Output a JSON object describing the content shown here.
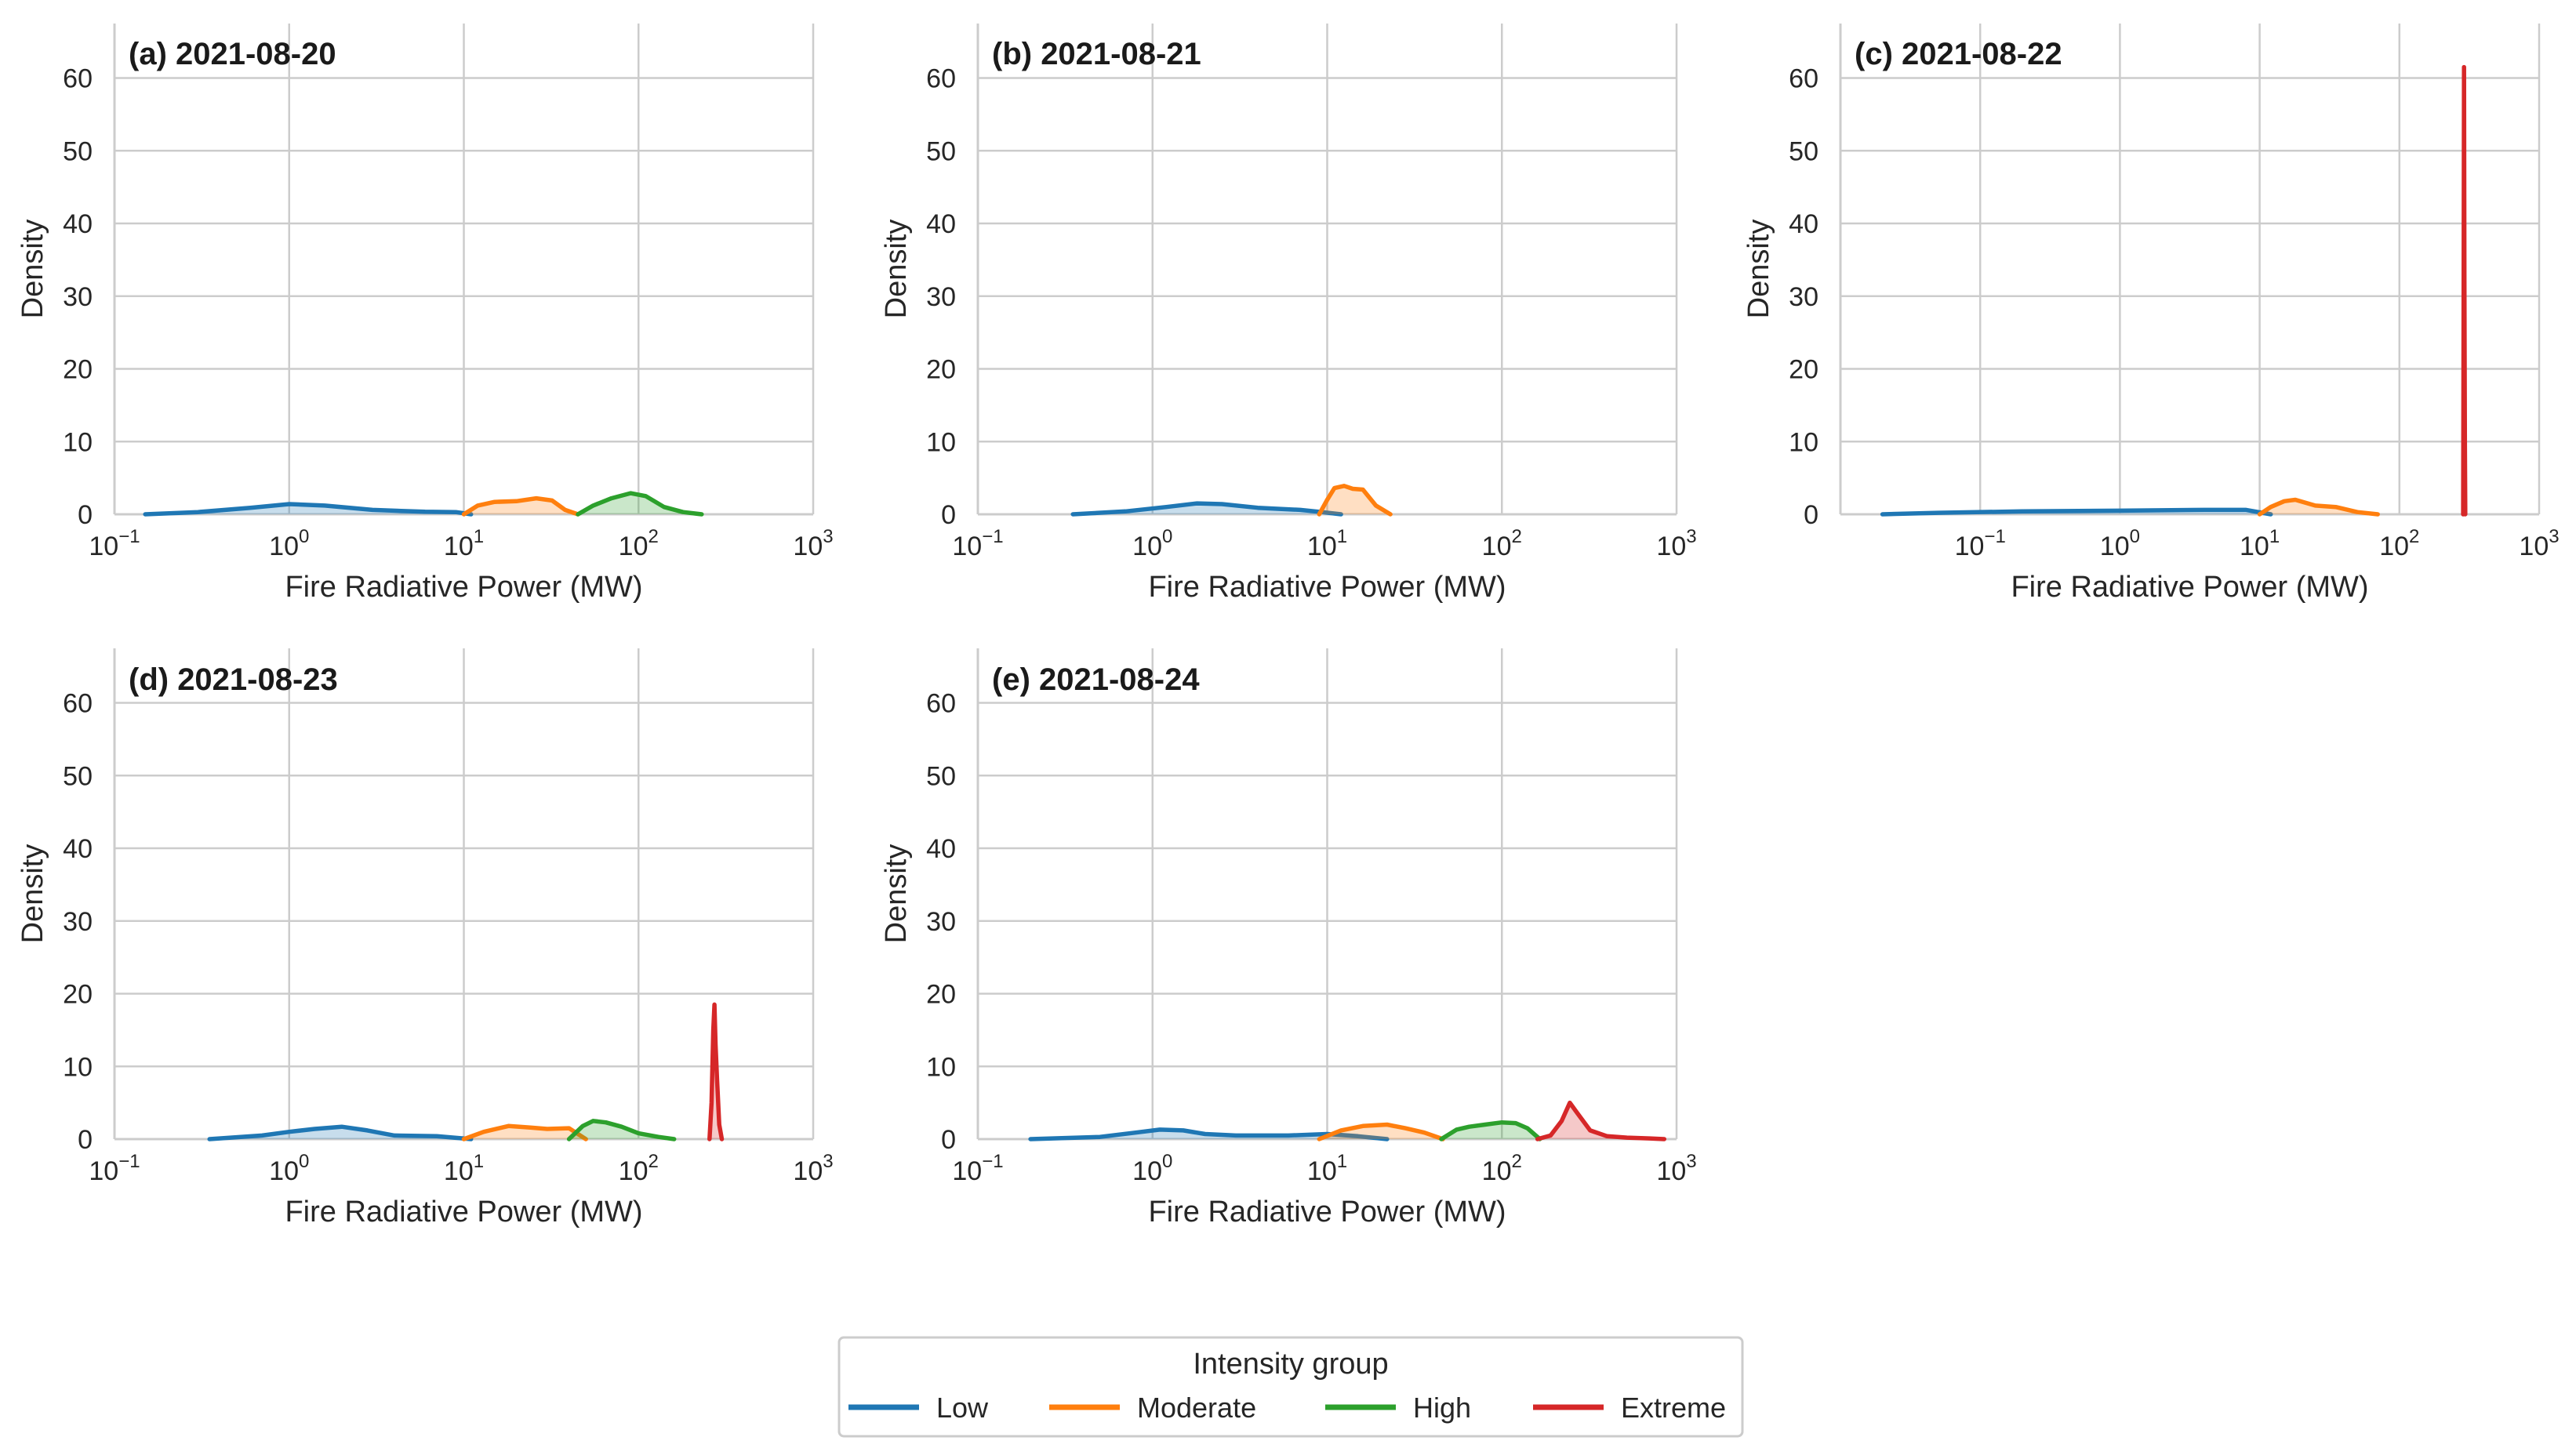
{
  "figure": {
    "legend": {
      "title": "Intensity group",
      "placement": "bottom-center"
    }
  },
  "chart_data": [
    {
      "type": "area",
      "title": "(a) 2021-08-20",
      "xlabel": "Fire Radiative Power (MW)",
      "ylabel": "Density",
      "xscale": "log",
      "xlim": [
        0.1,
        1000
      ],
      "ylim": [
        0,
        67.5
      ],
      "xticks": [
        0.1,
        1,
        10,
        100,
        1000
      ],
      "yticks": [
        0,
        10,
        20,
        30,
        40,
        50,
        60
      ],
      "grid": true,
      "series": [
        {
          "name": "Low",
          "color": "#1f77b4",
          "x": [
            0.15,
            0.3,
            0.6,
            1.0,
            1.6,
            3,
            6,
            9,
            11
          ],
          "y": [
            0,
            0.3,
            0.9,
            1.4,
            1.2,
            0.6,
            0.35,
            0.3,
            0
          ]
        },
        {
          "name": "Moderate",
          "color": "#ff7f0e",
          "x": [
            10,
            12,
            15,
            20,
            26,
            32,
            38,
            45
          ],
          "y": [
            0,
            1.2,
            1.7,
            1.8,
            2.2,
            1.9,
            0.6,
            0
          ]
        },
        {
          "name": "High",
          "color": "#2ca02c",
          "x": [
            45,
            55,
            70,
            90,
            110,
            140,
            180,
            230
          ],
          "y": [
            0,
            1.2,
            2.2,
            2.9,
            2.5,
            1.0,
            0.3,
            0
          ]
        }
      ]
    },
    {
      "type": "area",
      "title": "(b) 2021-08-21",
      "xlabel": "Fire Radiative Power (MW)",
      "ylabel": "Density",
      "xscale": "log",
      "xlim": [
        0.1,
        1000
      ],
      "ylim": [
        0,
        67.5
      ],
      "xticks": [
        0.1,
        1,
        10,
        100,
        1000
      ],
      "yticks": [
        0,
        10,
        20,
        30,
        40,
        50,
        60
      ],
      "grid": true,
      "series": [
        {
          "name": "Low",
          "color": "#1f77b4",
          "x": [
            0.35,
            0.7,
            1.2,
            1.8,
            2.5,
            4,
            7,
            9,
            12
          ],
          "y": [
            0,
            0.4,
            1.0,
            1.5,
            1.4,
            0.9,
            0.6,
            0.35,
            0
          ]
        },
        {
          "name": "Moderate",
          "color": "#ff7f0e",
          "x": [
            9,
            10,
            11,
            12.5,
            14,
            16,
            19,
            23
          ],
          "y": [
            0,
            2.0,
            3.6,
            3.9,
            3.5,
            3.4,
            1.2,
            0
          ]
        }
      ]
    },
    {
      "type": "area",
      "title": "(c) 2021-08-22",
      "xlabel": "Fire Radiative Power (MW)",
      "ylabel": "Density",
      "xscale": "log",
      "xlim": [
        0.01,
        1000
      ],
      "ylim": [
        0,
        67.5
      ],
      "xticks": [
        0.1,
        1,
        10,
        100,
        1000
      ],
      "yticks": [
        0,
        10,
        20,
        30,
        40,
        50,
        60
      ],
      "grid": true,
      "series": [
        {
          "name": "Low",
          "color": "#1f77b4",
          "x": [
            0.02,
            0.05,
            0.2,
            1,
            4,
            8,
            12
          ],
          "y": [
            0,
            0.2,
            0.4,
            0.5,
            0.6,
            0.6,
            0
          ]
        },
        {
          "name": "Moderate",
          "color": "#ff7f0e",
          "x": [
            10,
            12,
            15,
            18,
            25,
            35,
            50,
            70
          ],
          "y": [
            0,
            1.0,
            1.8,
            2.0,
            1.2,
            1.0,
            0.3,
            0
          ]
        },
        {
          "name": "Extreme",
          "color": "#d62728",
          "x": [
            286,
            288,
            290,
            292,
            294,
            296
          ],
          "y": [
            0,
            30,
            61.5,
            32,
            10,
            0
          ]
        }
      ]
    },
    {
      "type": "area",
      "title": "(d) 2021-08-23",
      "xlabel": "Fire Radiative Power (MW)",
      "ylabel": "Density",
      "xscale": "log",
      "xlim": [
        0.1,
        1000
      ],
      "ylim": [
        0,
        67.5
      ],
      "xticks": [
        0.1,
        1,
        10,
        100,
        1000
      ],
      "yticks": [
        0,
        10,
        20,
        30,
        40,
        50,
        60
      ],
      "grid": true,
      "series": [
        {
          "name": "Low",
          "color": "#1f77b4",
          "x": [
            0.35,
            0.7,
            1.0,
            1.4,
            2.0,
            2.8,
            4,
            7,
            11
          ],
          "y": [
            0,
            0.5,
            1.0,
            1.4,
            1.7,
            1.2,
            0.5,
            0.4,
            0
          ]
        },
        {
          "name": "Moderate",
          "color": "#ff7f0e",
          "x": [
            10,
            13,
            18,
            24,
            30,
            40,
            50
          ],
          "y": [
            0,
            1.0,
            1.8,
            1.6,
            1.4,
            1.5,
            0
          ]
        },
        {
          "name": "High",
          "color": "#2ca02c",
          "x": [
            40,
            48,
            55,
            65,
            80,
            100,
            130,
            160
          ],
          "y": [
            0,
            1.8,
            2.5,
            2.3,
            1.7,
            0.8,
            0.3,
            0
          ]
        },
        {
          "name": "Extreme",
          "color": "#d62728",
          "x": [
            255,
            262,
            268,
            272,
            276,
            282,
            290,
            300
          ],
          "y": [
            0,
            5,
            15,
            18.5,
            13,
            8,
            2,
            0
          ]
        }
      ]
    },
    {
      "type": "area",
      "title": "(e) 2021-08-24",
      "xlabel": "Fire Radiative Power (MW)",
      "ylabel": "Density",
      "xscale": "log",
      "xlim": [
        0.1,
        1000
      ],
      "ylim": [
        0,
        67.5
      ],
      "xticks": [
        0.1,
        1,
        10,
        100,
        1000
      ],
      "yticks": [
        0,
        10,
        20,
        30,
        40,
        50,
        60
      ],
      "grid": true,
      "series": [
        {
          "name": "Low",
          "color": "#1f77b4",
          "x": [
            0.2,
            0.5,
            0.8,
            1.1,
            1.5,
            2,
            3,
            6,
            10,
            15,
            22
          ],
          "y": [
            0,
            0.3,
            0.9,
            1.3,
            1.2,
            0.7,
            0.5,
            0.5,
            0.7,
            0.4,
            0
          ]
        },
        {
          "name": "Moderate",
          "color": "#ff7f0e",
          "x": [
            9,
            12,
            16,
            22,
            28,
            36,
            46
          ],
          "y": [
            0,
            1.2,
            1.8,
            2.0,
            1.5,
            0.9,
            0
          ]
        },
        {
          "name": "High",
          "color": "#2ca02c",
          "x": [
            45,
            55,
            65,
            80,
            100,
            120,
            140,
            165
          ],
          "y": [
            0,
            1.3,
            1.7,
            2.0,
            2.3,
            2.2,
            1.5,
            0
          ]
        },
        {
          "name": "Extreme",
          "color": "#d62728",
          "x": [
            160,
            190,
            220,
            245,
            270,
            320,
            400,
            520,
            700,
            850
          ],
          "y": [
            0,
            0.5,
            2.5,
            5.0,
            3.6,
            1.2,
            0.4,
            0.2,
            0.1,
            0
          ]
        }
      ]
    }
  ]
}
